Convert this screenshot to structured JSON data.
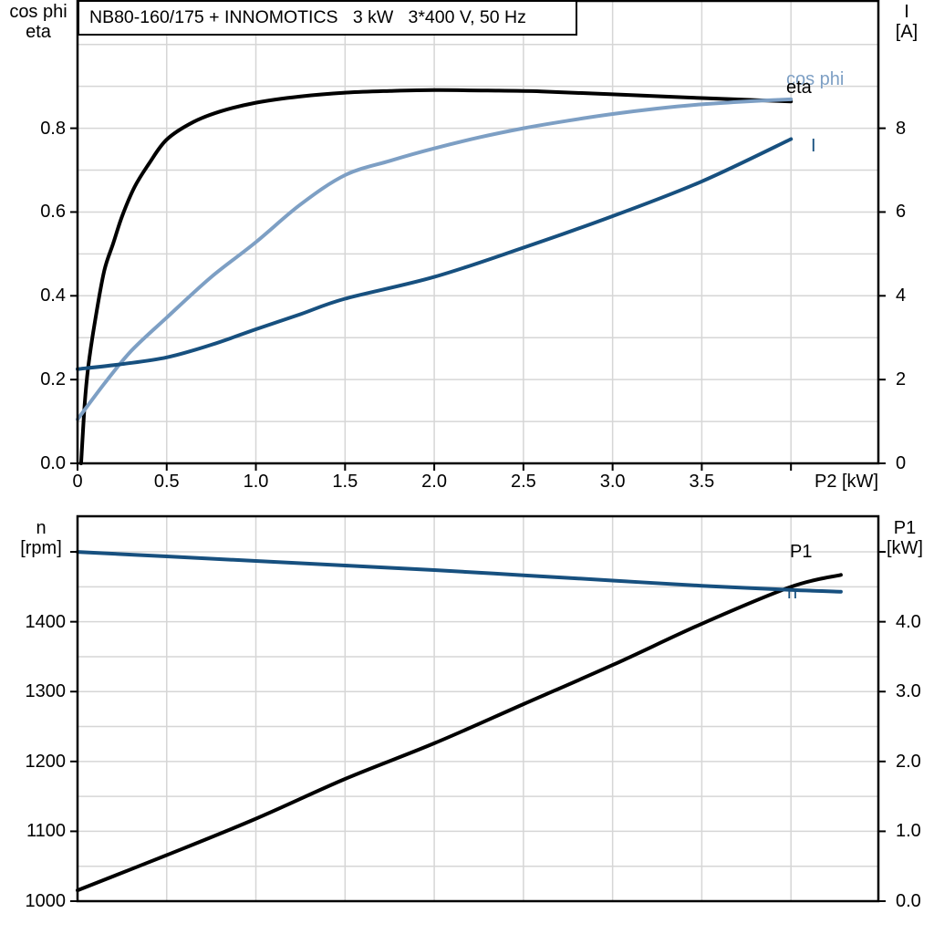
{
  "title_box": {
    "text": "NB80-160/175 + INNOMOTICS   3 kW   3*400 V, 50 Hz"
  },
  "colors": {
    "black": "#000000",
    "light_blue": "#7d9fc4",
    "dark_blue": "#17507f",
    "grid": "#d6d6d6",
    "frame": "#000000",
    "background": "#ffffff"
  },
  "chart_data": [
    {
      "type": "line",
      "name": "motor-efficiency-powerfactor-current",
      "x_axis": {
        "label": "P2 [kW]",
        "min": 0,
        "max": 4.49,
        "grid_step": 0.5,
        "ticks": [
          {
            "v": 0,
            "t": "0"
          },
          {
            "v": 0.5,
            "t": "0.5"
          },
          {
            "v": 1,
            "t": "1.0"
          },
          {
            "v": 1.5,
            "t": "1.5"
          },
          {
            "v": 2,
            "t": "2.0"
          },
          {
            "v": 2.5,
            "t": "2.5"
          },
          {
            "v": 3,
            "t": "3.0"
          },
          {
            "v": 3.5,
            "t": "3.5"
          },
          {
            "v": 4,
            "t": ""
          }
        ]
      },
      "y_left": {
        "label_lines": [
          "cos phi",
          "eta"
        ],
        "min": 0,
        "max": 1.104,
        "grid_step": 0.1,
        "ticks": [
          {
            "v": 0,
            "t": "0.0"
          },
          {
            "v": 0.2,
            "t": "0.2"
          },
          {
            "v": 0.4,
            "t": "0.4"
          },
          {
            "v": 0.6,
            "t": "0.6"
          },
          {
            "v": 0.8,
            "t": "0.8"
          }
        ]
      },
      "y_right": {
        "label_lines": [
          "I",
          "[A]"
        ],
        "min": 0,
        "max": 11.04,
        "ticks": [
          {
            "v": 0,
            "t": "0"
          },
          {
            "v": 2,
            "t": "2"
          },
          {
            "v": 4,
            "t": "4"
          },
          {
            "v": 6,
            "t": "6"
          },
          {
            "v": 8,
            "t": "8"
          }
        ]
      },
      "series": [
        {
          "name": "eta",
          "axis": "left",
          "color_key": "black",
          "points": [
            [
              0.02,
              0
            ],
            [
              0.04,
              0.14
            ],
            [
              0.06,
              0.23
            ],
            [
              0.1,
              0.345
            ],
            [
              0.15,
              0.46
            ],
            [
              0.2,
              0.525
            ],
            [
              0.25,
              0.59
            ],
            [
              0.32,
              0.66
            ],
            [
              0.4,
              0.715
            ],
            [
              0.5,
              0.773
            ],
            [
              0.65,
              0.815
            ],
            [
              0.8,
              0.84
            ],
            [
              1.0,
              0.861
            ],
            [
              1.25,
              0.876
            ],
            [
              1.5,
              0.885
            ],
            [
              1.75,
              0.889
            ],
            [
              2.0,
              0.891
            ],
            [
              2.3,
              0.89
            ],
            [
              2.6,
              0.888
            ],
            [
              3.0,
              0.881
            ],
            [
              3.5,
              0.872
            ],
            [
              4.0,
              0.864
            ]
          ]
        },
        {
          "name": "cos phi",
          "axis": "left",
          "color_key": "light_blue",
          "points": [
            [
              0,
              0.105
            ],
            [
              0.15,
              0.19
            ],
            [
              0.3,
              0.268
            ],
            [
              0.5,
              0.348
            ],
            [
              0.75,
              0.445
            ],
            [
              1.0,
              0.528
            ],
            [
              1.25,
              0.618
            ],
            [
              1.5,
              0.688
            ],
            [
              1.75,
              0.722
            ],
            [
              2.0,
              0.752
            ],
            [
              2.25,
              0.778
            ],
            [
              2.5,
              0.8
            ],
            [
              2.75,
              0.818
            ],
            [
              3.0,
              0.834
            ],
            [
              3.25,
              0.847
            ],
            [
              3.5,
              0.857
            ],
            [
              3.75,
              0.864
            ],
            [
              4.0,
              0.869
            ]
          ]
        },
        {
          "name": "I",
          "axis": "right",
          "color_key": "dark_blue",
          "points": [
            [
              0,
              2.25
            ],
            [
              0.25,
              2.37
            ],
            [
              0.5,
              2.53
            ],
            [
              0.75,
              2.83
            ],
            [
              1.0,
              3.2
            ],
            [
              1.25,
              3.56
            ],
            [
              1.5,
              3.93
            ],
            [
              2.0,
              4.45
            ],
            [
              2.5,
              5.15
            ],
            [
              3.0,
              5.9
            ],
            [
              3.5,
              6.73
            ],
            [
              4.0,
              7.74
            ]
          ]
        }
      ]
    },
    {
      "type": "line",
      "name": "motor-speed-inputpower",
      "x_axis": {
        "label": "",
        "min": 0,
        "max": 4.49,
        "grid_step": 0.5,
        "ticks": []
      },
      "y_left": {
        "label_lines": [
          "n",
          "[rpm]"
        ],
        "min": 1000,
        "max": 1551,
        "grid_step": 50,
        "ticks": [
          {
            "v": 1000,
            "t": "1000"
          },
          {
            "v": 1100,
            "t": "1100"
          },
          {
            "v": 1200,
            "t": "1200"
          },
          {
            "v": 1300,
            "t": "1300"
          },
          {
            "v": 1400,
            "t": "1400"
          },
          {
            "v": 1500,
            "t": ""
          }
        ]
      },
      "y_right": {
        "label_lines": [
          "P1",
          "[kW]"
        ],
        "min": 0,
        "max": 5.51,
        "ticks": [
          {
            "v": 0,
            "t": "0.0"
          },
          {
            "v": 1,
            "t": "1.0"
          },
          {
            "v": 2,
            "t": "2.0"
          },
          {
            "v": 3,
            "t": "3.0"
          },
          {
            "v": 4,
            "t": "4.0"
          },
          {
            "v": 5,
            "t": ""
          }
        ]
      },
      "series": [
        {
          "name": "P1",
          "axis": "right",
          "color_key": "black",
          "points": [
            [
              0,
              0.155
            ],
            [
              0.5,
              0.66
            ],
            [
              1.0,
              1.18
            ],
            [
              1.5,
              1.75
            ],
            [
              2.0,
              2.26
            ],
            [
              2.5,
              2.82
            ],
            [
              3.0,
              3.38
            ],
            [
              3.5,
              3.97
            ],
            [
              4.0,
              4.5
            ],
            [
              4.28,
              4.67
            ]
          ]
        },
        {
          "name": "n",
          "axis": "left",
          "color_key": "dark_blue",
          "points": [
            [
              0,
              1500
            ],
            [
              0.5,
              1493.5
            ],
            [
              1.0,
              1487
            ],
            [
              1.5,
              1480.5
            ],
            [
              2.0,
              1474
            ],
            [
              2.5,
              1466.5
            ],
            [
              3.0,
              1459
            ],
            [
              3.5,
              1451.5
            ],
            [
              4.0,
              1445.5
            ],
            [
              4.28,
              1443
            ]
          ]
        }
      ]
    }
  ]
}
